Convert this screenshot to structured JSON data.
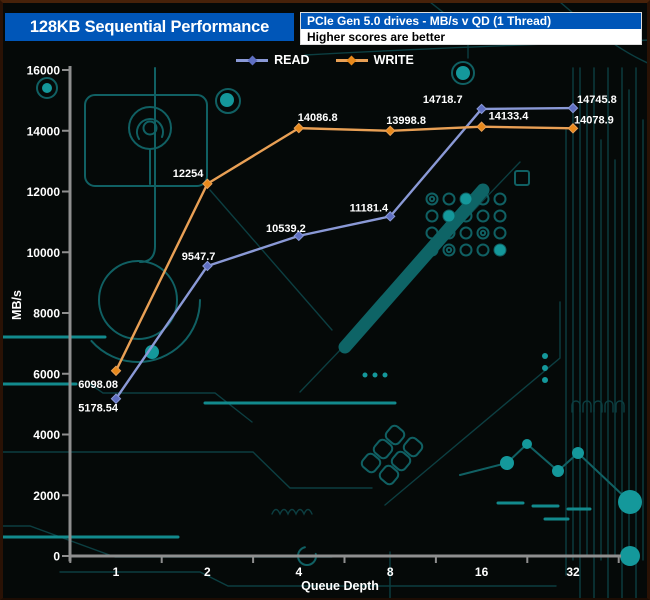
{
  "header": {
    "title": "128KB Sequential Performance",
    "subtitle": "PCIe Gen 5.0 drives - MB/s v QD (1 Thread)",
    "note": "Higher scores are better"
  },
  "colors": {
    "header_blue": "#0056b8",
    "axis_gray": "#8f8f8f",
    "background": "#050908",
    "trace_teal": "#117d80",
    "read_line": "#8a99d6",
    "read_marker": "#5f6fc2",
    "write_line": "#e9a055",
    "write_marker": "#e8891b"
  },
  "legend": [
    {
      "label": "READ",
      "color": "#8a99d6",
      "marker_color": "#5f6fc2"
    },
    {
      "label": "WRITE",
      "color": "#e9a055",
      "marker_color": "#e8891b"
    }
  ],
  "axes": {
    "x_ticks": [
      "1",
      "2",
      "4",
      "8",
      "16",
      "32"
    ],
    "y_ticks": [
      "0",
      "2000",
      "4000",
      "6000",
      "8000",
      "10000",
      "12000",
      "14000",
      "16000"
    ]
  },
  "chart_data": {
    "type": "line",
    "title": "128KB Sequential Performance",
    "subtitle": "PCIe Gen 5.0 drives - MB/s v QD (1 Thread)",
    "x": [
      1,
      2,
      4,
      8,
      16,
      32
    ],
    "xlabel": "Queue Depth",
    "ylabel": "MB/s",
    "ylim": [
      0,
      16000
    ],
    "ytick_step": 2000,
    "x_scale": "log2-categorical",
    "grid": false,
    "legend_position": "top-center",
    "series": [
      {
        "name": "READ",
        "color": "#8a99d6",
        "marker_color": "#5f6fc2",
        "marker": "diamond",
        "values": [
          5178.54,
          9547.7,
          10539.2,
          11181.4,
          14718.7,
          14745.8
        ],
        "labels": [
          "5178.54",
          "9547.7",
          "10539.2",
          "11181.4",
          "14718.7",
          "14745.8"
        ]
      },
      {
        "name": "WRITE",
        "color": "#e9a055",
        "marker_color": "#e8891b",
        "marker": "diamond",
        "values": [
          6098.08,
          12254,
          14086.8,
          13998.8,
          14133.4,
          14078.9
        ],
        "labels": [
          "6098.08",
          "12254",
          "14086.8",
          "13998.8",
          "14133.4",
          "14078.9"
        ]
      }
    ]
  }
}
